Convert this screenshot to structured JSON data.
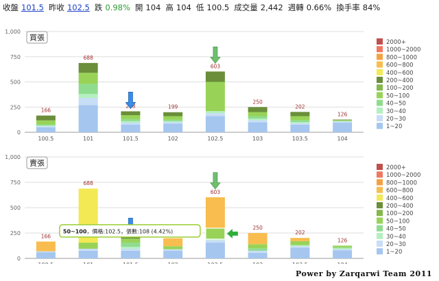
{
  "header": {
    "items": [
      {
        "label": "收盤",
        "value": "101.5",
        "style": "close"
      },
      {
        "label": "昨收",
        "value": "102.5",
        "style": "close"
      },
      {
        "label": "跌",
        "value": "0.98%",
        "style": "green"
      },
      {
        "label": "開",
        "value": "104",
        "style": "plain"
      },
      {
        "label": "高",
        "value": "104",
        "style": "plain"
      },
      {
        "label": "低",
        "value": "100.5",
        "style": "plain"
      },
      {
        "label": "成交量",
        "value": "2,442",
        "style": "plain"
      },
      {
        "label": "週轉",
        "value": "0.66%",
        "style": "plain"
      },
      {
        "label": "換手率",
        "value": "84%",
        "style": "plain"
      }
    ]
  },
  "footer": {
    "text": "Power by Zarqarwi Team 2011"
  },
  "legend": {
    "items": [
      {
        "label": "2000+",
        "color": "#c0504d"
      },
      {
        "label": "1000~2000",
        "color": "#f07860"
      },
      {
        "label": "800~1000",
        "color": "#f5a142"
      },
      {
        "label": "600~800",
        "color": "#f8bd4e"
      },
      {
        "label": "400~600",
        "color": "#f2e955"
      },
      {
        "label": "200~400",
        "color": "#6b8e3a"
      },
      {
        "label": "100~200",
        "color": "#84b84c"
      },
      {
        "label": "50~100",
        "color": "#98d358"
      },
      {
        "label": "40~50",
        "color": "#8fdc8f"
      },
      {
        "label": "30~40",
        "color": "#b4efc0"
      },
      {
        "label": "20~30",
        "color": "#c8ddf6"
      },
      {
        "label": "1~20",
        "color": "#a4c6ef"
      }
    ]
  },
  "colors": {
    "arrow_blue": "#3a8ee6",
    "arrow_green": "#6fbf6f",
    "pointer_green": "#2fae3a",
    "tooltip_border": "#9acd32"
  },
  "chart_data": [
    {
      "type": "bar",
      "title": "買張",
      "categories": [
        "100.5",
        "101",
        "101.5",
        "102",
        "102.5",
        "103",
        "103.5",
        "104"
      ],
      "ylim": [
        0,
        1000
      ],
      "yticks": [
        0,
        250,
        500,
        750,
        1000
      ],
      "ytick_labels": [
        "0",
        "250",
        "500",
        "750",
        "1,000"
      ],
      "totals": [
        166,
        688,
        208,
        199,
        603,
        250,
        202,
        126
      ],
      "series": [
        {
          "name": "1~20",
          "values": [
            50,
            270,
            75,
            85,
            160,
            100,
            75,
            95
          ]
        },
        {
          "name": "20~30",
          "values": [
            10,
            70,
            20,
            15,
            30,
            20,
            15,
            10
          ]
        },
        {
          "name": "30~40",
          "values": [
            8,
            40,
            15,
            10,
            20,
            15,
            10,
            5
          ]
        },
        {
          "name": "40~50",
          "values": [
            10,
            100,
            20,
            15,
            0,
            25,
            20,
            4
          ]
        },
        {
          "name": "50~100",
          "values": [
            40,
            110,
            40,
            35,
            290,
            40,
            40,
            6
          ]
        },
        {
          "name": "100~200",
          "values": [
            0,
            0,
            0,
            0,
            0,
            0,
            0,
            0
          ]
        },
        {
          "name": "200~400",
          "values": [
            48,
            98,
            38,
            39,
            103,
            50,
            42,
            6
          ]
        },
        {
          "name": "400~600",
          "values": [
            0,
            0,
            0,
            0,
            0,
            0,
            0,
            0
          ]
        },
        {
          "name": "600~800",
          "values": [
            0,
            0,
            0,
            0,
            0,
            0,
            0,
            0
          ]
        },
        {
          "name": "800~1000",
          "values": [
            0,
            0,
            0,
            0,
            0,
            0,
            0,
            0
          ]
        },
        {
          "name": "1000~2000",
          "values": [
            0,
            0,
            0,
            0,
            0,
            0,
            0,
            0
          ]
        },
        {
          "name": "2000+",
          "values": [
            0,
            0,
            0,
            0,
            0,
            0,
            0,
            0
          ]
        }
      ],
      "markers": [
        {
          "category": "101.5",
          "kind": "down-arrow",
          "color": "blue"
        },
        {
          "category": "102.5",
          "kind": "down-arrow",
          "color": "green"
        }
      ]
    },
    {
      "type": "bar",
      "title": "賣張",
      "categories": [
        "100.5",
        "101",
        "101.5",
        "102",
        "102.5",
        "103",
        "103.5",
        "104"
      ],
      "ylim": [
        0,
        1000
      ],
      "yticks": [
        0,
        250,
        500,
        750,
        1000
      ],
      "ytick_labels": [
        "0",
        "250",
        "500",
        "750",
        "1,000"
      ],
      "totals": [
        166,
        688,
        208,
        199,
        603,
        250,
        202,
        126
      ],
      "series": [
        {
          "name": "1~20",
          "values": [
            60,
            75,
            75,
            75,
            155,
            55,
            105,
            80
          ]
        },
        {
          "name": "20~30",
          "values": [
            10,
            20,
            20,
            15,
            25,
            20,
            15,
            10
          ]
        },
        {
          "name": "30~40",
          "values": [
            0,
            0,
            20,
            0,
            10,
            0,
            10,
            10
          ]
        },
        {
          "name": "40~50",
          "values": [
            0,
            0,
            40,
            0,
            0,
            25,
            0,
            10
          ]
        },
        {
          "name": "50~100",
          "values": [
            0,
            60,
            40,
            30,
            108,
            40,
            40,
            16
          ]
        },
        {
          "name": "100~200",
          "values": [
            0,
            0,
            0,
            0,
            0,
            0,
            0,
            0
          ]
        },
        {
          "name": "200~400",
          "values": [
            0,
            0,
            13,
            0,
            0,
            0,
            0,
            0
          ]
        },
        {
          "name": "400~600",
          "values": [
            0,
            533,
            0,
            0,
            0,
            0,
            0,
            0
          ]
        },
        {
          "name": "600~800",
          "values": [
            96,
            0,
            0,
            79,
            305,
            110,
            32,
            0
          ]
        },
        {
          "name": "800~1000",
          "values": [
            0,
            0,
            0,
            0,
            0,
            0,
            0,
            0
          ]
        },
        {
          "name": "1000~2000",
          "values": [
            0,
            0,
            0,
            0,
            0,
            0,
            0,
            0
          ]
        },
        {
          "name": "2000+",
          "values": [
            0,
            0,
            0,
            0,
            0,
            0,
            0,
            0
          ]
        }
      ],
      "markers": [
        {
          "category": "101.5",
          "kind": "down-arrow",
          "color": "blue"
        },
        {
          "category": "102.5",
          "kind": "down-arrow",
          "color": "green"
        }
      ],
      "tooltip": {
        "category": "102.5",
        "series": "50~100",
        "bold": "50~100",
        "text": "，價格:102.5，張數:108 (4.42%)"
      }
    }
  ]
}
